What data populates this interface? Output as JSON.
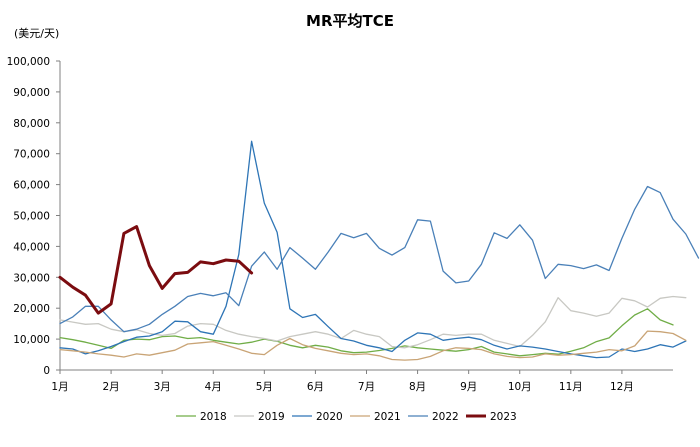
{
  "chart_data": {
    "type": "line",
    "title": "MR平均TCE",
    "ylabel": "(美元/天)",
    "xlabel": "",
    "ylim": [
      0,
      100000
    ],
    "y_ticks": [
      0,
      10000,
      20000,
      30000,
      40000,
      50000,
      60000,
      70000,
      80000,
      90000,
      100000
    ],
    "y_tick_labels": [
      "0",
      "10,000",
      "20,000",
      "30,000",
      "40,000",
      "50,000",
      "60,000",
      "70,000",
      "80,000",
      "90,000",
      "100,000"
    ],
    "xlim": [
      1,
      13
    ],
    "x_ticks": [
      1,
      2,
      3,
      4,
      5,
      6,
      7,
      8,
      9,
      10,
      11,
      12
    ],
    "x_tick_labels": [
      "1月",
      "2月",
      "3月",
      "4月",
      "5月",
      "6月",
      "7月",
      "8月",
      "9月",
      "10月",
      "11月",
      "12月"
    ],
    "grid": false,
    "legend_position": "bottom",
    "series": [
      {
        "name": "2018",
        "color": "#70ad47",
        "width": 1.3,
        "points": [
          [
            1,
            10500
          ],
          [
            1.25,
            9800
          ],
          [
            1.5,
            9000
          ],
          [
            1.75,
            8000
          ],
          [
            2,
            7000
          ],
          [
            2.25,
            9600
          ],
          [
            2.5,
            10000
          ],
          [
            2.75,
            9800
          ],
          [
            3,
            10800
          ],
          [
            3.25,
            11000
          ],
          [
            3.5,
            10200
          ],
          [
            3.75,
            10500
          ],
          [
            4,
            9600
          ],
          [
            4.25,
            9000
          ],
          [
            4.5,
            8400
          ],
          [
            4.75,
            9000
          ],
          [
            5,
            10000
          ],
          [
            5.25,
            9300
          ],
          [
            5.5,
            8000
          ],
          [
            5.75,
            7200
          ],
          [
            6,
            8000
          ],
          [
            6.25,
            7400
          ],
          [
            6.5,
            6200
          ],
          [
            6.75,
            5600
          ],
          [
            7,
            5800
          ],
          [
            7.25,
            6300
          ],
          [
            7.5,
            7000
          ],
          [
            7.75,
            7800
          ],
          [
            8,
            7200
          ],
          [
            8.25,
            6800
          ],
          [
            8.5,
            6400
          ],
          [
            8.75,
            6100
          ],
          [
            9,
            6600
          ],
          [
            9.25,
            7600
          ],
          [
            9.5,
            5800
          ],
          [
            9.75,
            5200
          ],
          [
            10,
            4600
          ],
          [
            10.25,
            5000
          ],
          [
            10.5,
            5400
          ],
          [
            10.75,
            5100
          ],
          [
            11,
            6100
          ],
          [
            11.25,
            7200
          ],
          [
            11.5,
            9200
          ],
          [
            11.75,
            10400
          ],
          [
            12,
            14300
          ],
          [
            12.25,
            17800
          ],
          [
            12.5,
            19800
          ],
          [
            12.75,
            16200
          ],
          [
            13,
            14600
          ]
        ]
      },
      {
        "name": "2019",
        "color": "#c8c8c3",
        "width": 1.3,
        "points": [
          [
            1,
            16200
          ],
          [
            1.25,
            15500
          ],
          [
            1.5,
            14800
          ],
          [
            1.75,
            15000
          ],
          [
            2,
            13200
          ],
          [
            2.25,
            12400
          ],
          [
            2.5,
            13000
          ],
          [
            2.75,
            11800
          ],
          [
            3,
            11200
          ],
          [
            3.25,
            11800
          ],
          [
            3.5,
            14200
          ],
          [
            3.75,
            15000
          ],
          [
            4,
            14800
          ],
          [
            4.25,
            12800
          ],
          [
            4.5,
            11600
          ],
          [
            4.75,
            10800
          ],
          [
            5,
            10200
          ],
          [
            5.25,
            9400
          ],
          [
            5.5,
            10800
          ],
          [
            5.75,
            11600
          ],
          [
            6,
            12400
          ],
          [
            6.25,
            11600
          ],
          [
            6.5,
            10200
          ],
          [
            6.75,
            12800
          ],
          [
            7,
            11600
          ],
          [
            7.25,
            10800
          ],
          [
            7.5,
            7600
          ],
          [
            7.75,
            7200
          ],
          [
            8,
            8200
          ],
          [
            8.25,
            9800
          ],
          [
            8.5,
            11600
          ],
          [
            8.75,
            11200
          ],
          [
            9,
            11600
          ],
          [
            9.25,
            11600
          ],
          [
            9.5,
            9600
          ],
          [
            9.75,
            8600
          ],
          [
            10,
            7600
          ],
          [
            10.25,
            11200
          ],
          [
            10.5,
            15600
          ],
          [
            10.75,
            23400
          ],
          [
            11,
            19200
          ],
          [
            11.25,
            18400
          ],
          [
            11.5,
            17400
          ],
          [
            11.75,
            18400
          ],
          [
            12,
            23200
          ],
          [
            12.25,
            22400
          ],
          [
            12.5,
            20400
          ],
          [
            12.75,
            23200
          ],
          [
            13,
            23800
          ],
          [
            13.25,
            23400
          ]
        ]
      },
      {
        "name": "2020",
        "color": "#2e75b6",
        "width": 1.3,
        "points": [
          [
            1,
            7200
          ],
          [
            1.25,
            6800
          ],
          [
            1.5,
            5200
          ],
          [
            1.75,
            6200
          ],
          [
            2,
            7600
          ],
          [
            2.25,
            9200
          ],
          [
            2.5,
            10600
          ],
          [
            2.75,
            11000
          ],
          [
            3,
            12400
          ],
          [
            3.25,
            15800
          ],
          [
            3.5,
            15600
          ],
          [
            3.75,
            12400
          ],
          [
            4,
            11600
          ],
          [
            4.25,
            20600
          ],
          [
            4.5,
            37400
          ],
          [
            4.75,
            74000
          ],
          [
            5,
            54000
          ],
          [
            5.25,
            44600
          ],
          [
            5.5,
            19800
          ],
          [
            5.75,
            17000
          ],
          [
            6,
            18000
          ],
          [
            6.25,
            14000
          ],
          [
            6.5,
            10200
          ],
          [
            6.75,
            9400
          ],
          [
            7,
            8000
          ],
          [
            7.25,
            7200
          ],
          [
            7.5,
            6000
          ],
          [
            7.75,
            9600
          ],
          [
            8,
            12000
          ],
          [
            8.25,
            11600
          ],
          [
            8.5,
            9600
          ],
          [
            8.75,
            10200
          ],
          [
            9,
            10600
          ],
          [
            9.25,
            9800
          ],
          [
            9.5,
            8000
          ],
          [
            9.75,
            6800
          ],
          [
            10,
            7800
          ],
          [
            10.25,
            7400
          ],
          [
            10.5,
            6800
          ],
          [
            10.75,
            6000
          ],
          [
            11,
            5200
          ],
          [
            11.25,
            4600
          ],
          [
            11.5,
            4000
          ],
          [
            11.75,
            4200
          ],
          [
            12,
            6800
          ],
          [
            12.25,
            6000
          ],
          [
            12.5,
            6800
          ],
          [
            12.75,
            8200
          ],
          [
            13,
            7400
          ],
          [
            13.25,
            9400
          ]
        ]
      },
      {
        "name": "2021",
        "color": "#c9a476",
        "width": 1.3,
        "points": [
          [
            1,
            6600
          ],
          [
            1.25,
            6200
          ],
          [
            1.5,
            5800
          ],
          [
            1.75,
            5200
          ],
          [
            2,
            4800
          ],
          [
            2.25,
            4200
          ],
          [
            2.5,
            5200
          ],
          [
            2.75,
            4800
          ],
          [
            3,
            5600
          ],
          [
            3.25,
            6400
          ],
          [
            3.5,
            8400
          ],
          [
            3.75,
            8800
          ],
          [
            4,
            9200
          ],
          [
            4.25,
            8000
          ],
          [
            4.5,
            6800
          ],
          [
            4.75,
            5400
          ],
          [
            5,
            5000
          ],
          [
            5.25,
            8000
          ],
          [
            5.5,
            10200
          ],
          [
            5.75,
            8200
          ],
          [
            6,
            7000
          ],
          [
            6.25,
            6200
          ],
          [
            6.5,
            5400
          ],
          [
            6.75,
            5000
          ],
          [
            7,
            5200
          ],
          [
            7.25,
            4600
          ],
          [
            7.5,
            3400
          ],
          [
            7.75,
            3200
          ],
          [
            8,
            3400
          ],
          [
            8.25,
            4400
          ],
          [
            8.5,
            6200
          ],
          [
            8.75,
            7200
          ],
          [
            9,
            7000
          ],
          [
            9.25,
            6600
          ],
          [
            9.5,
            5200
          ],
          [
            9.75,
            4400
          ],
          [
            10,
            4000
          ],
          [
            10.25,
            4200
          ],
          [
            10.5,
            5200
          ],
          [
            10.75,
            4800
          ],
          [
            11,
            5000
          ],
          [
            11.25,
            5400
          ],
          [
            11.5,
            5800
          ],
          [
            11.75,
            6600
          ],
          [
            12,
            6200
          ],
          [
            12.25,
            7800
          ],
          [
            12.5,
            12600
          ],
          [
            12.75,
            12400
          ],
          [
            13,
            11800
          ],
          [
            13.25,
            9600
          ]
        ]
      },
      {
        "name": "2022",
        "color": "#4a80b8",
        "width": 1.3,
        "points": [
          [
            1,
            15000
          ],
          [
            1.25,
            17200
          ],
          [
            1.5,
            20600
          ],
          [
            1.75,
            20600
          ],
          [
            2,
            16200
          ],
          [
            2.25,
            12400
          ],
          [
            2.5,
            13200
          ],
          [
            2.75,
            14800
          ],
          [
            3,
            18000
          ],
          [
            3.25,
            20600
          ],
          [
            3.5,
            23800
          ],
          [
            3.75,
            24800
          ],
          [
            4,
            24000
          ],
          [
            4.25,
            25000
          ],
          [
            4.5,
            20800
          ],
          [
            4.75,
            33600
          ],
          [
            5,
            38200
          ],
          [
            5.25,
            32600
          ],
          [
            5.5,
            39600
          ],
          [
            5.75,
            36200
          ],
          [
            6,
            32600
          ],
          [
            6.25,
            38200
          ],
          [
            6.5,
            44200
          ],
          [
            6.75,
            42800
          ],
          [
            7,
            44200
          ],
          [
            7.25,
            39400
          ],
          [
            7.5,
            37200
          ],
          [
            7.75,
            39600
          ],
          [
            8,
            48600
          ],
          [
            8.25,
            48200
          ],
          [
            8.5,
            32000
          ],
          [
            8.75,
            28200
          ],
          [
            9,
            28800
          ],
          [
            9.25,
            34200
          ],
          [
            9.5,
            44400
          ],
          [
            9.75,
            42600
          ],
          [
            10,
            47000
          ],
          [
            10.25,
            42000
          ],
          [
            10.5,
            29600
          ],
          [
            10.75,
            34200
          ],
          [
            11,
            33800
          ],
          [
            11.25,
            32800
          ],
          [
            11.5,
            34000
          ],
          [
            11.75,
            32200
          ],
          [
            12,
            42600
          ],
          [
            12.25,
            52000
          ],
          [
            12.5,
            59400
          ],
          [
            12.75,
            57400
          ],
          [
            13,
            48800
          ],
          [
            13.25,
            44000
          ],
          [
            13.5,
            36200
          ]
        ]
      },
      {
        "name": "2023",
        "color": "#7b0c10",
        "width": 3,
        "points": [
          [
            1,
            30000
          ],
          [
            1.25,
            26800
          ],
          [
            1.5,
            24200
          ],
          [
            1.75,
            18400
          ],
          [
            2,
            21400
          ],
          [
            2.25,
            44200
          ],
          [
            2.5,
            46400
          ],
          [
            2.75,
            33800
          ],
          [
            3,
            26400
          ],
          [
            3.25,
            31200
          ],
          [
            3.5,
            31600
          ],
          [
            3.75,
            35000
          ],
          [
            4,
            34400
          ],
          [
            4.25,
            35600
          ],
          [
            4.5,
            35200
          ],
          [
            4.75,
            31400
          ]
        ]
      }
    ]
  }
}
